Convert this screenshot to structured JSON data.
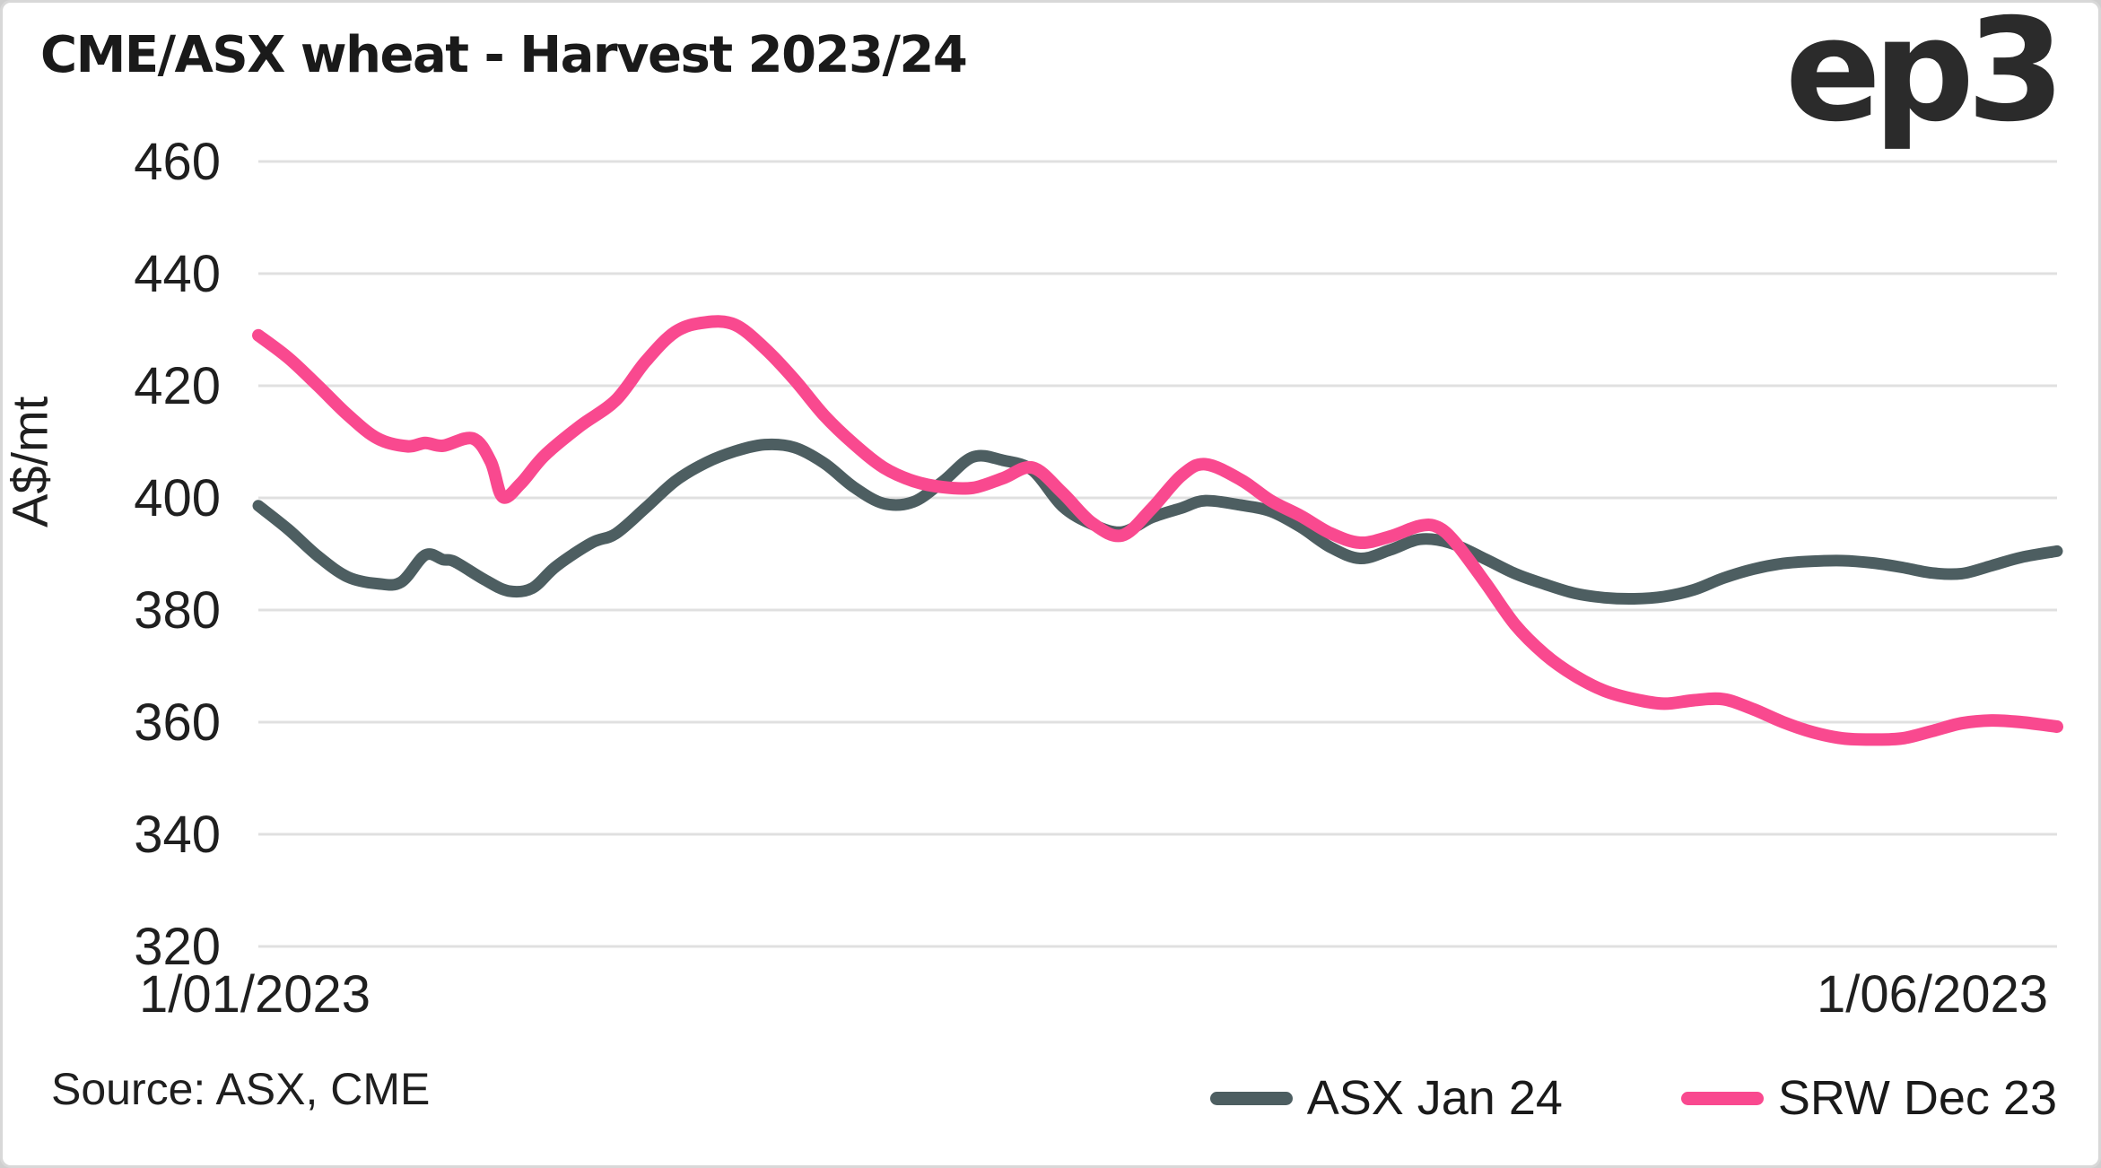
{
  "header": {
    "title": "CME/ASX wheat - Harvest 2023/24",
    "logo_text": "ep3"
  },
  "footer": {
    "source": "Source: ASX, CME"
  },
  "colors": {
    "asx_line": "#4d5e61",
    "srw_line": "#f9498f",
    "gridline": "#e0e0e0",
    "text": "#1f1f1f",
    "logo": "#2b2b2b",
    "border": "#d8d8d8"
  },
  "chart_data": {
    "type": "line",
    "title": "CME/ASX wheat - Harvest 2023/24",
    "xlabel": "",
    "ylabel": "A$/mt",
    "ylim": [
      320,
      460
    ],
    "xlim": [
      0,
      151
    ],
    "x_unit": "days since 1/01/2023",
    "x_tick_labels": [
      "1/01/2023",
      "1/06/2023"
    ],
    "y_ticks": [
      320,
      340,
      360,
      380,
      400,
      420,
      440,
      460
    ],
    "grid": "horizontal",
    "legend_position": "bottom-right",
    "series": [
      {
        "name": "ASX Jan 24",
        "color": "#4d5e61",
        "points": [
          [
            0,
            398.6
          ],
          [
            2.5,
            394.4
          ],
          [
            5,
            389.6
          ],
          [
            7.5,
            385.9
          ],
          [
            10,
            384.7
          ],
          [
            12,
            385.0
          ],
          [
            14,
            389.8
          ],
          [
            15.5,
            389.0
          ],
          [
            16.5,
            388.6
          ],
          [
            19,
            385.4
          ],
          [
            21,
            383.4
          ],
          [
            23,
            383.9
          ],
          [
            25,
            387.8
          ],
          [
            28,
            392.0
          ],
          [
            30,
            393.6
          ],
          [
            32.5,
            398.2
          ],
          [
            35,
            403.0
          ],
          [
            37.5,
            406.2
          ],
          [
            40,
            408.3
          ],
          [
            42.5,
            409.5
          ],
          [
            45,
            409.0
          ],
          [
            47.5,
            406.2
          ],
          [
            50,
            401.9
          ],
          [
            52.5,
            399.0
          ],
          [
            55,
            399.3
          ],
          [
            57.5,
            403.0
          ],
          [
            60,
            407.3
          ],
          [
            62.5,
            406.7
          ],
          [
            65,
            404.9
          ],
          [
            67.5,
            398.5
          ],
          [
            70,
            395.3
          ],
          [
            72.5,
            393.9
          ],
          [
            75,
            396.5
          ],
          [
            77.5,
            398.2
          ],
          [
            79.5,
            399.5
          ],
          [
            82.5,
            398.7
          ],
          [
            85,
            397.6
          ],
          [
            87.5,
            394.8
          ],
          [
            90,
            391.2
          ],
          [
            92.5,
            389.2
          ],
          [
            95,
            390.7
          ],
          [
            97.5,
            392.6
          ],
          [
            100,
            392.0
          ],
          [
            103,
            389.1
          ],
          [
            105.5,
            386.5
          ],
          [
            108,
            384.6
          ],
          [
            110.5,
            383.0
          ],
          [
            113,
            382.2
          ],
          [
            115.5,
            382.0
          ],
          [
            118,
            382.4
          ],
          [
            120.5,
            383.6
          ],
          [
            123,
            385.7
          ],
          [
            125.5,
            387.3
          ],
          [
            128,
            388.3
          ],
          [
            130.5,
            388.7
          ],
          [
            133,
            388.8
          ],
          [
            135.5,
            388.4
          ],
          [
            138,
            387.6
          ],
          [
            140.5,
            386.6
          ],
          [
            143,
            386.5
          ],
          [
            145.5,
            387.9
          ],
          [
            148,
            389.4
          ],
          [
            151,
            390.5
          ]
        ]
      },
      {
        "name": "SRW Dec 23",
        "color": "#f9498f",
        "points": [
          [
            0,
            429.0
          ],
          [
            2.5,
            425.0
          ],
          [
            5,
            420.0
          ],
          [
            7.5,
            414.8
          ],
          [
            10,
            410.6
          ],
          [
            12.5,
            409.2
          ],
          [
            14,
            409.8
          ],
          [
            15.5,
            409.3
          ],
          [
            18,
            410.6
          ],
          [
            19.5,
            406.5
          ],
          [
            20.5,
            400.2
          ],
          [
            22,
            402.5
          ],
          [
            24,
            407.5
          ],
          [
            27,
            412.8
          ],
          [
            30,
            417.4
          ],
          [
            32.5,
            424.3
          ],
          [
            35,
            429.6
          ],
          [
            37.5,
            431.3
          ],
          [
            40,
            430.9
          ],
          [
            42.5,
            426.7
          ],
          [
            45,
            421.1
          ],
          [
            47.5,
            414.7
          ],
          [
            50,
            409.6
          ],
          [
            52.5,
            405.4
          ],
          [
            55,
            403.0
          ],
          [
            57.5,
            401.9
          ],
          [
            60,
            401.8
          ],
          [
            62.5,
            403.5
          ],
          [
            65,
            405.4
          ],
          [
            67.5,
            400.9
          ],
          [
            70,
            395.5
          ],
          [
            72.5,
            393.3
          ],
          [
            75,
            398.1
          ],
          [
            77.5,
            404.0
          ],
          [
            79.5,
            406.0
          ],
          [
            82.5,
            403.2
          ],
          [
            85,
            399.5
          ],
          [
            87.5,
            396.8
          ],
          [
            90,
            393.7
          ],
          [
            92.5,
            392.0
          ],
          [
            95,
            393.1
          ],
          [
            97.5,
            395.0
          ],
          [
            99,
            394.8
          ],
          [
            100.5,
            392.0
          ],
          [
            103,
            384.9
          ],
          [
            105.5,
            377.4
          ],
          [
            108,
            372.1
          ],
          [
            110.5,
            368.3
          ],
          [
            113,
            365.6
          ],
          [
            115.5,
            364.1
          ],
          [
            118,
            363.3
          ],
          [
            120.5,
            363.9
          ],
          [
            123,
            364.1
          ],
          [
            125.5,
            362.3
          ],
          [
            128,
            360.0
          ],
          [
            130.5,
            358.2
          ],
          [
            133,
            357.1
          ],
          [
            135.5,
            356.9
          ],
          [
            138,
            357.1
          ],
          [
            140.5,
            358.4
          ],
          [
            143,
            359.8
          ],
          [
            145.5,
            360.3
          ],
          [
            148,
            360.0
          ],
          [
            151,
            359.2
          ]
        ]
      }
    ]
  }
}
